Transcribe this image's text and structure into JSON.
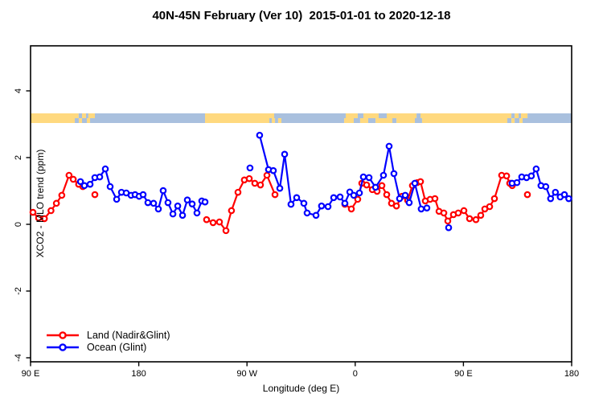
{
  "title": "40N-45N February (Ver 10)  2015-01-01 to 2020-12-18",
  "chart_data": {
    "type": "line",
    "xlabel": "Longitude (deg E)",
    "ylabel": "XCO2 - MLO trend (ppm)",
    "xlim": [
      90,
      540
    ],
    "ylim": [
      -4.1,
      5.35
    ],
    "grid": false,
    "x_ticks": [
      {
        "pos": 90,
        "label": "90 E"
      },
      {
        "pos": 180,
        "label": "180"
      },
      {
        "pos": 270,
        "label": "90 W"
      },
      {
        "pos": 360,
        "label": "0"
      },
      {
        "pos": 450,
        "label": "90 E"
      },
      {
        "pos": 540,
        "label": "180"
      }
    ],
    "y_ticks": [
      {
        "pos": -4,
        "label": "-4"
      },
      {
        "pos": -2,
        "label": "-2"
      },
      {
        "pos": 0,
        "label": "0"
      },
      {
        "pos": 2,
        "label": "2"
      },
      {
        "pos": 4,
        "label": "4"
      }
    ],
    "legend": {
      "position": "bottom-left",
      "items": [
        {
          "name": "land",
          "label": "Land (Nadir&Glint)",
          "color": "#ff0000"
        },
        {
          "name": "ocean",
          "label": "Ocean (Glint)",
          "color": "#0000ff"
        }
      ]
    },
    "series": [
      {
        "name": "land",
        "label": "Land (Nadir&Glint)",
        "color": "#ff0000",
        "segments": [
          [
            [
              92,
              0.36
            ],
            [
              96.7,
              0.19
            ],
            [
              101.5,
              0.17
            ],
            [
              107,
              0.41
            ],
            [
              111.5,
              0.63
            ],
            [
              116,
              0.87
            ],
            [
              122,
              1.47
            ],
            [
              125.5,
              1.35
            ],
            [
              130,
              1.2
            ],
            [
              133.5,
              1.13
            ]
          ],
          [
            [
              143.5,
              0.89
            ]
          ],
          [
            [
              236.4,
              0.14
            ],
            [
              241.8,
              0.05
            ],
            [
              247.1,
              0.07
            ],
            [
              252.5,
              -0.19
            ],
            [
              257.1,
              0.41
            ],
            [
              262.5,
              0.96
            ],
            [
              267.8,
              1.33
            ],
            [
              271.9,
              1.37
            ],
            [
              276.5,
              1.23
            ],
            [
              281.2,
              1.18
            ],
            [
              286.6,
              1.47
            ],
            [
              293.3,
              0.89
            ]
          ],
          [
            [
              351.4,
              0.6
            ],
            [
              356.8,
              0.46
            ],
            [
              362.1,
              0.75
            ],
            [
              365.5,
              1.23
            ],
            [
              369.5,
              1.18
            ],
            [
              374.2,
              1.04
            ],
            [
              378.2,
              0.99
            ],
            [
              382.2,
              1.16
            ],
            [
              386.2,
              0.89
            ],
            [
              390.2,
              0.63
            ],
            [
              394.3,
              0.55
            ],
            [
              398.9,
              0.84
            ],
            [
              403.6,
              0.72
            ],
            [
              407.6,
              1.16
            ],
            [
              411.6,
              1.25
            ],
            [
              414.3,
              1.28
            ],
            [
              418.3,
              0.7
            ],
            [
              422.3,
              0.75
            ],
            [
              426.3,
              0.77
            ],
            [
              429.7,
              0.39
            ],
            [
              433.7,
              0.34
            ],
            [
              437,
              0.1
            ],
            [
              441.7,
              0.29
            ],
            [
              445.7,
              0.34
            ],
            [
              450.4,
              0.41
            ],
            [
              455.1,
              0.17
            ],
            [
              460.4,
              0.14
            ],
            [
              464.4,
              0.27
            ],
            [
              467.8,
              0.46
            ],
            [
              471.8,
              0.53
            ],
            [
              475.8,
              0.77
            ],
            [
              481.8,
              1.47
            ],
            [
              485.9,
              1.45
            ],
            [
              488.5,
              1.23
            ],
            [
              490.6,
              1.16
            ]
          ],
          [
            [
              503.2,
              0.89
            ]
          ]
        ]
      },
      {
        "name": "ocean",
        "label": "Ocean (Glint)",
        "color": "#0000ff",
        "segments": [
          [
            [
              131.5,
              1.28
            ],
            [
              134.8,
              1.16
            ],
            [
              139.5,
              1.2
            ],
            [
              143.5,
              1.4
            ],
            [
              147.5,
              1.42
            ],
            [
              152.2,
              1.66
            ],
            [
              156.2,
              1.13
            ],
            [
              161.6,
              0.75
            ],
            [
              165.6,
              0.96
            ],
            [
              169.6,
              0.94
            ],
            [
              173.6,
              0.87
            ],
            [
              176.9,
              0.89
            ],
            [
              180.3,
              0.84
            ],
            [
              183.6,
              0.89
            ],
            [
              187.6,
              0.65
            ],
            [
              192.3,
              0.63
            ],
            [
              196.3,
              0.46
            ],
            [
              200.3,
              1.01
            ],
            [
              204.3,
              0.65
            ],
            [
              208.4,
              0.31
            ],
            [
              212.4,
              0.55
            ],
            [
              216.4,
              0.27
            ],
            [
              220.4,
              0.73
            ],
            [
              224.4,
              0.61
            ],
            [
              228.4,
              0.34
            ],
            [
              232.4,
              0.7
            ],
            [
              235.1,
              0.67
            ]
          ],
          [
            [
              272.5,
              1.69
            ]
          ],
          [
            [
              280.5,
              2.67
            ],
            [
              287.9,
              1.64
            ],
            [
              291.9,
              1.61
            ],
            [
              297.3,
              1.08
            ],
            [
              301.3,
              2.1
            ],
            [
              306.6,
              0.6
            ],
            [
              311.3,
              0.8
            ],
            [
              317.3,
              0.63
            ],
            [
              320,
              0.34
            ],
            [
              327.4,
              0.27
            ],
            [
              332,
              0.55
            ],
            [
              337.4,
              0.53
            ],
            [
              342.1,
              0.8
            ],
            [
              347.4,
              0.82
            ],
            [
              351.4,
              0.63
            ],
            [
              355.5,
              0.97
            ],
            [
              358.8,
              0.87
            ],
            [
              363.5,
              0.94
            ],
            [
              366.8,
              1.42
            ],
            [
              371.5,
              1.4
            ],
            [
              376.9,
              1.11
            ],
            [
              383.5,
              1.47
            ],
            [
              388.2,
              2.34
            ],
            [
              392.2,
              1.52
            ],
            [
              396.9,
              0.77
            ],
            [
              401.6,
              0.87
            ],
            [
              404.9,
              0.65
            ],
            [
              409.6,
              1.23
            ],
            [
              414.9,
              0.46
            ],
            [
              419.6,
              0.49
            ]
          ],
          [
            [
              437.7,
              -0.1
            ]
          ],
          [
            [
              490.5,
              1.23
            ],
            [
              494.5,
              1.25
            ],
            [
              498.5,
              1.42
            ],
            [
              502.5,
              1.4
            ],
            [
              506.5,
              1.45
            ],
            [
              510.5,
              1.66
            ],
            [
              514.5,
              1.16
            ],
            [
              518.5,
              1.13
            ],
            [
              522.5,
              0.77
            ],
            [
              526.5,
              0.96
            ],
            [
              530.5,
              0.82
            ],
            [
              534,
              0.89
            ],
            [
              537.6,
              0.77
            ]
          ]
        ]
      }
    ],
    "map_strip": {
      "description": "land/ocean coastline band for 40N-45N",
      "y_value": 3.2,
      "colors": {
        "land": "#FFD97F",
        "ocean": "#A9C0DE"
      },
      "rows": [
        {
          "segments": [
            [
              90,
              130,
              "land"
            ],
            [
              130,
              132.8,
              "ocean"
            ],
            [
              132.8,
              136.1,
              "land"
            ],
            [
              136.1,
              138.1,
              "ocean"
            ],
            [
              138.1,
              143.5,
              "land"
            ],
            [
              143.5,
              235.1,
              "ocean"
            ],
            [
              235.1,
              292.6,
              "land"
            ],
            [
              292.6,
              352.1,
              "ocean"
            ],
            [
              352.1,
              362.1,
              "land"
            ],
            [
              362.1,
              366.8,
              "ocean"
            ],
            [
              366.8,
              379.5,
              "land"
            ],
            [
              379.5,
              386.2,
              "ocean"
            ],
            [
              386.2,
              411,
              "land"
            ],
            [
              411,
              414.3,
              "ocean"
            ],
            [
              414.3,
              489.9,
              "land"
            ],
            [
              489.9,
              492.6,
              "ocean"
            ],
            [
              492.6,
              495.9,
              "land"
            ],
            [
              495.9,
              497.9,
              "ocean"
            ],
            [
              497.9,
              503.3,
              "land"
            ],
            [
              503.3,
              540,
              "ocean"
            ]
          ]
        },
        {
          "segments": [
            [
              90,
              126.8,
              "land"
            ],
            [
              126.8,
              130.1,
              "ocean"
            ],
            [
              130.1,
              132.8,
              "land"
            ],
            [
              132.8,
              136.8,
              "ocean"
            ],
            [
              136.8,
              139.5,
              "land"
            ],
            [
              139.5,
              235.1,
              "ocean"
            ],
            [
              235.1,
              288.6,
              "land"
            ],
            [
              288.6,
              290.6,
              "ocean"
            ],
            [
              290.6,
              293.3,
              "land"
            ],
            [
              293.3,
              295.9,
              "ocean"
            ],
            [
              295.9,
              298.6,
              "land"
            ],
            [
              298.6,
              350.8,
              "ocean"
            ],
            [
              350.8,
              358.8,
              "land"
            ],
            [
              358.8,
              364.1,
              "ocean"
            ],
            [
              364.1,
              370.8,
              "land"
            ],
            [
              370.8,
              376.9,
              "ocean"
            ],
            [
              376.9,
              390.9,
              "land"
            ],
            [
              390.9,
              394.3,
              "ocean"
            ],
            [
              394.3,
              409.6,
              "land"
            ],
            [
              409.6,
              415.6,
              "ocean"
            ],
            [
              415.6,
              486.5,
              "land"
            ],
            [
              486.5,
              489.9,
              "ocean"
            ],
            [
              489.9,
              492.6,
              "land"
            ],
            [
              492.6,
              496.6,
              "ocean"
            ],
            [
              496.6,
              499.2,
              "land"
            ],
            [
              499.2,
              540,
              "ocean"
            ]
          ]
        }
      ]
    }
  }
}
